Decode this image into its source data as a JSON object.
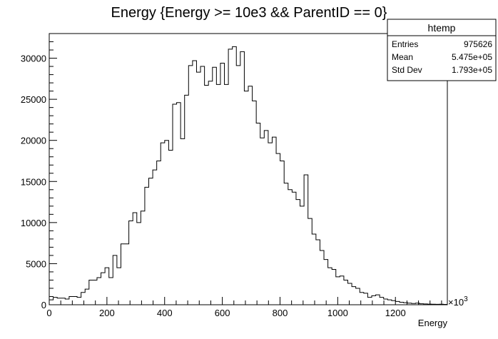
{
  "chart_data": {
    "type": "histogram",
    "title": "Energy {Energy >= 10e3 && ParentID == 0}",
    "xlabel": "Energy",
    "ylabel": "",
    "x_multiplier_label": "×10",
    "x_multiplier_exp": "3",
    "xlim": [
      0,
      1380
    ],
    "ylim": [
      0,
      33000
    ],
    "x_ticks": [
      0,
      200,
      400,
      600,
      800,
      1000,
      1200
    ],
    "y_ticks": [
      0,
      5000,
      10000,
      15000,
      20000,
      25000,
      30000
    ],
    "bin_width": 13.8,
    "values": [
      600,
      900,
      800,
      800,
      700,
      1000,
      1000,
      900,
      1500,
      1900,
      3000,
      3000,
      3300,
      3900,
      4500,
      3300,
      6000,
      4500,
      7400,
      7400,
      10200,
      11200,
      10000,
      11400,
      14300,
      15400,
      16400,
      17500,
      19700,
      20000,
      18800,
      24400,
      24600,
      20200,
      25500,
      29100,
      29700,
      28300,
      29000,
      26700,
      27200,
      28900,
      26800,
      29400,
      26800,
      31100,
      31400,
      29100,
      30800,
      26000,
      26600,
      24800,
      22100,
      20300,
      21200,
      19700,
      20400,
      18400,
      17500,
      14800,
      14000,
      13700,
      12800,
      12000,
      15800,
      10500,
      8600,
      7900,
      6600,
      5500,
      4500,
      4300,
      3400,
      3500,
      3000,
      2600,
      2200,
      2000,
      1500,
      1400,
      900,
      1100,
      1200,
      900,
      700,
      600,
      500,
      400,
      300,
      250,
      200,
      150,
      200,
      120,
      100,
      80,
      60,
      50,
      60,
      40
    ]
  },
  "stats_box": {
    "name": "htemp",
    "rows": [
      {
        "label": "Entries",
        "value": "975626"
      },
      {
        "label": "Mean",
        "value": "5.475e+05"
      },
      {
        "label": "Std Dev",
        "value": "1.793e+05"
      }
    ]
  }
}
